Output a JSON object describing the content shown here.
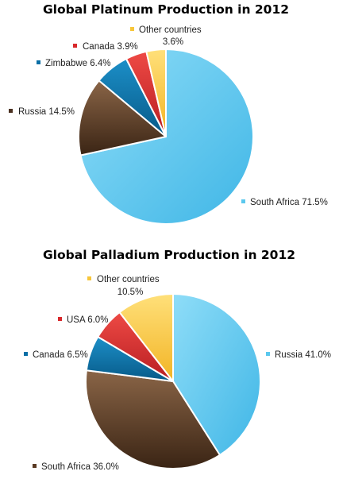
{
  "chart_data": [
    {
      "type": "pie",
      "title": "Global Platinum Production in 2012",
      "slices": [
        {
          "name": "South Africa",
          "value": 71.5,
          "label": "South Africa 71.5%",
          "color": "#5BC8EE"
        },
        {
          "name": "Russia",
          "value": 14.5,
          "label": "Russia 14.5%",
          "color": "#4A3020"
        },
        {
          "name": "Zimbabwe",
          "value": 6.4,
          "label": "Zimbabwe 6.4%",
          "color": "#0A6FA6"
        },
        {
          "name": "Canada",
          "value": 3.9,
          "label": "Canada 3.9%",
          "color": "#D8282B"
        },
        {
          "name": "Other countries",
          "value": 3.6,
          "label": "Other countries",
          "label2": "3.6%",
          "color": "#F7C63A"
        }
      ]
    },
    {
      "type": "pie",
      "title": "Global Palladium Production in 2012",
      "slices": [
        {
          "name": "Russia",
          "value": 41.0,
          "label": "Russia 41.0%",
          "color": "#5BC8EE"
        },
        {
          "name": "South Africa",
          "value": 36.0,
          "label": "South Africa 36.0%",
          "color": "#5A3A22"
        },
        {
          "name": "Canada",
          "value": 6.5,
          "label": "Canada 6.5%",
          "color": "#0A6FA6"
        },
        {
          "name": "USA",
          "value": 6.0,
          "label": "USA 6.0%",
          "color": "#D8282B"
        },
        {
          "name": "Other countries",
          "value": 10.5,
          "label": "Other countries",
          "label2": "10.5%",
          "color": "#F7C63A"
        }
      ]
    }
  ]
}
